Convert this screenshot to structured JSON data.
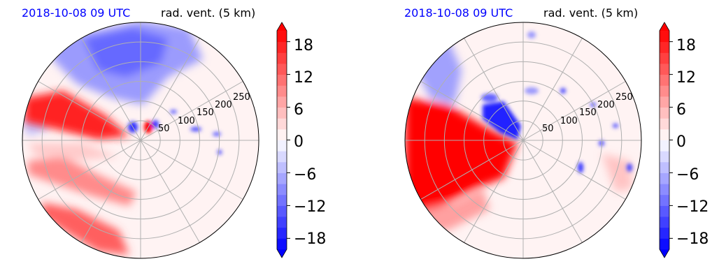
{
  "chart_data": [
    {
      "type": "polar-contour",
      "datetime": "2018-10-08 09 UTC",
      "field_label": "rad. vent. (5 km)",
      "radial_ticks": [
        50,
        100,
        150,
        200,
        250
      ],
      "rmax": 300,
      "grid": true,
      "colorbar": {
        "vmin": -20,
        "vmax": 20,
        "step": 2,
        "ticks": [
          -18,
          -12,
          -6,
          0,
          6,
          12,
          18
        ],
        "tick_labels": [
          "−18",
          "−12",
          "−6",
          "0",
          "6",
          "12",
          "18"
        ],
        "extend": "both",
        "cmap": "bwr"
      }
    },
    {
      "type": "polar-contour",
      "datetime": "2018-10-08 09 UTC",
      "field_label": "rad. vent. (5 km)",
      "radial_ticks": [
        50,
        100,
        150,
        200,
        250
      ],
      "rmax": 300,
      "grid": true,
      "colorbar": {
        "vmin": -20,
        "vmax": 20,
        "step": 2,
        "ticks": [
          -18,
          -12,
          -6,
          0,
          6,
          12,
          18
        ],
        "tick_labels": [
          "−18",
          "−12",
          "−6",
          "0",
          "6",
          "12",
          "18"
        ],
        "extend": "both",
        "cmap": "bwr"
      }
    }
  ],
  "colors": {
    "date_text": "#0000ff",
    "positive": "#ff0000",
    "negative": "#0000ff",
    "neutral": "#fff3f3",
    "grid": "#b0b0b0"
  }
}
